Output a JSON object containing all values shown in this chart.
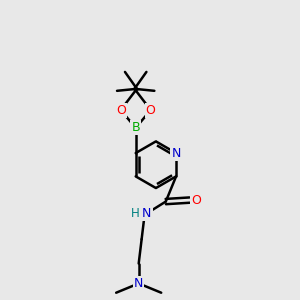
{
  "background_color": "#e8e8e8",
  "atom_colors": {
    "N": "#0000cc",
    "O": "#ff0000",
    "B": "#00aa00",
    "NH": "#008080"
  },
  "bond_color": "#000000",
  "bond_width": 1.8,
  "figsize": [
    3.0,
    3.0
  ],
  "dpi": 100
}
